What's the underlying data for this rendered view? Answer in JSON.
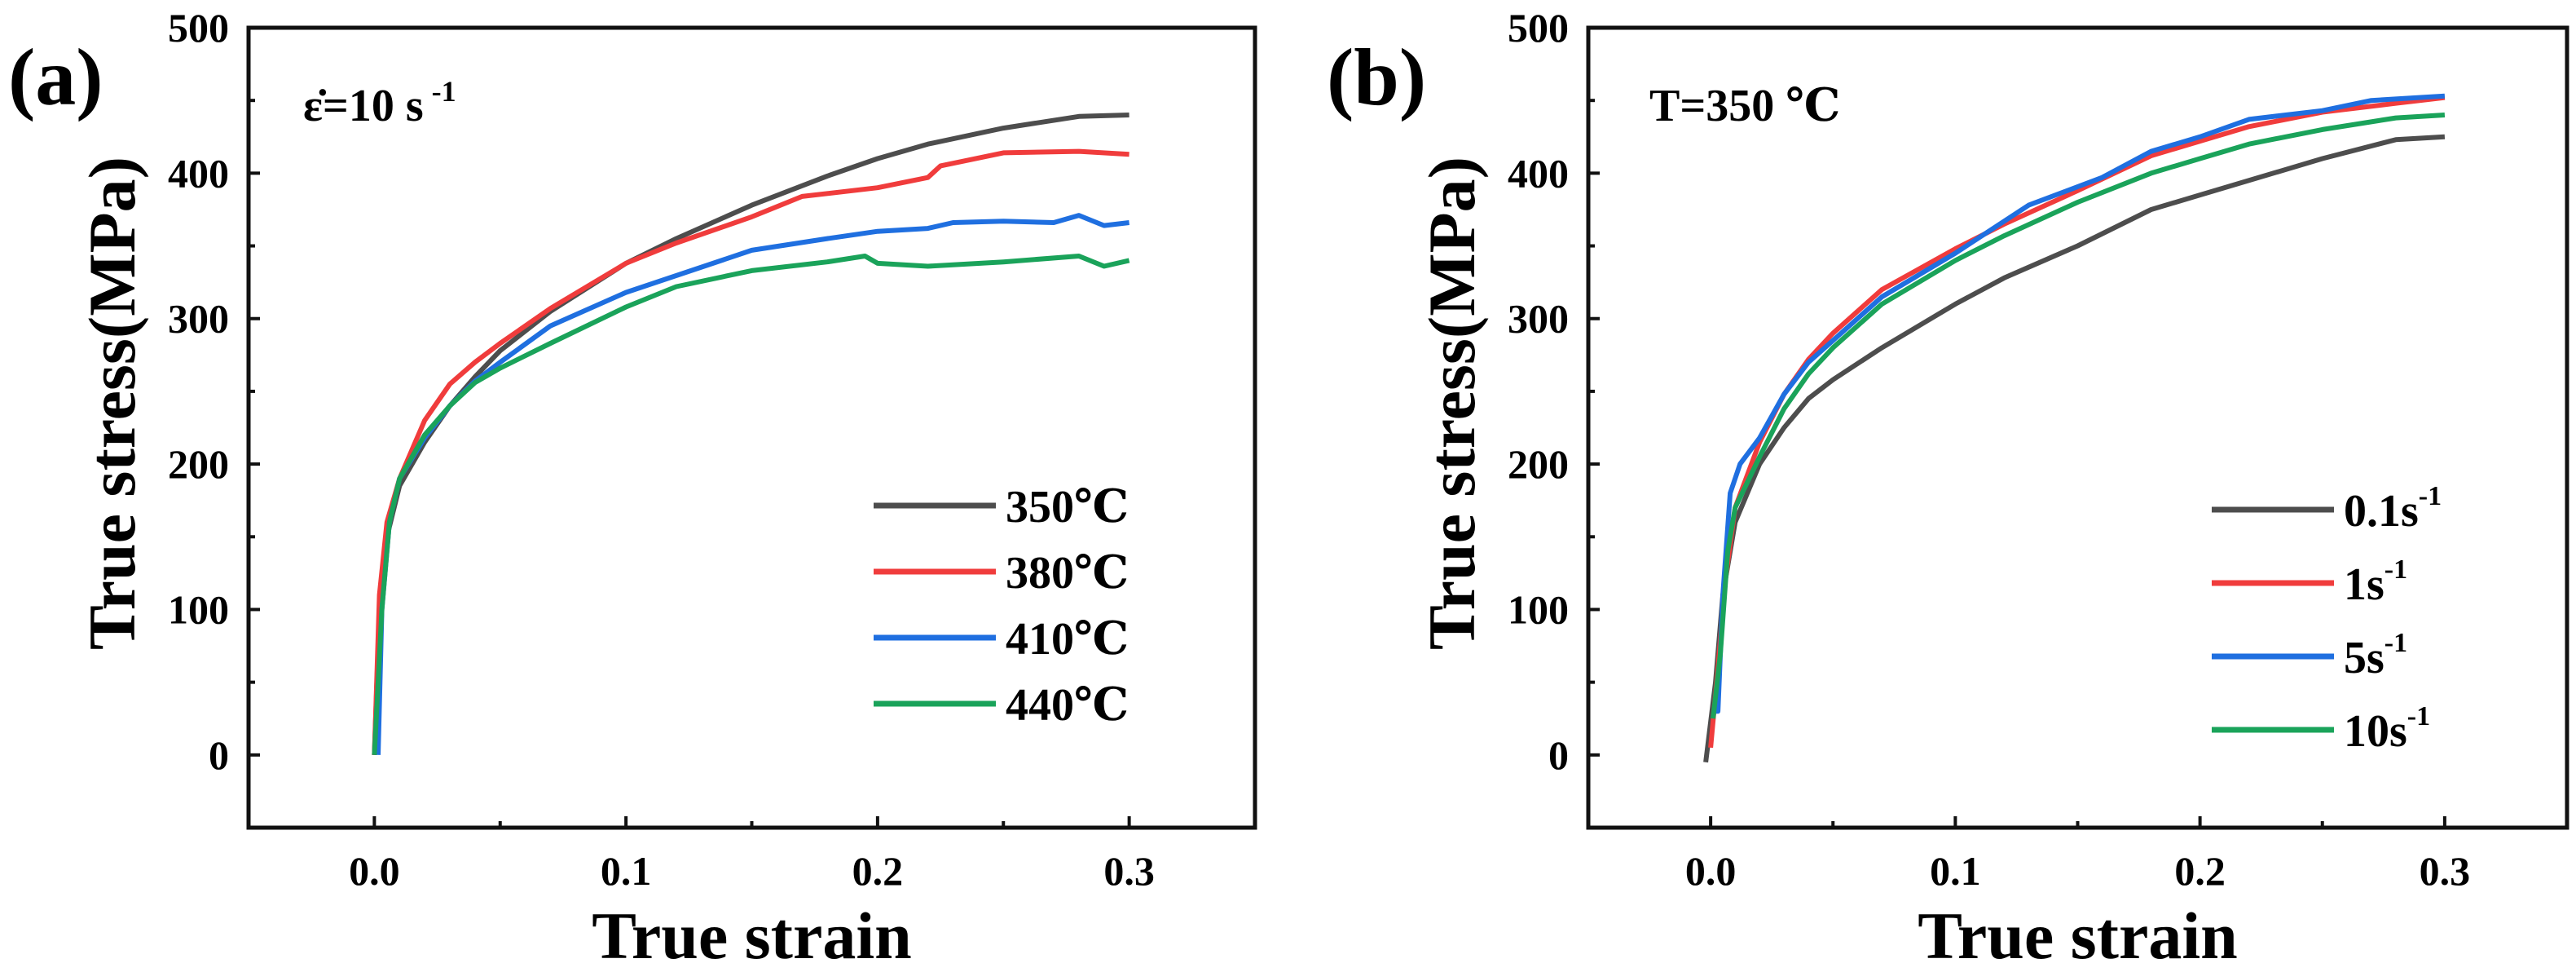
{
  "chart_data": [
    {
      "type": "line",
      "panel_label": "(a)",
      "annotation": "ε̇=10 s",
      "annotation_sup": "-1",
      "xlabel": "True strain",
      "ylabel": "True stress(MPa)",
      "xlim": [
        -0.05,
        0.35
      ],
      "ylim": [
        -50,
        500
      ],
      "xticks": [
        "0.0",
        "0.1",
        "0.2",
        "0.3"
      ],
      "xtick_values": [
        0,
        0.1,
        0.2,
        0.3
      ],
      "yticks": [
        "0",
        "100",
        "200",
        "300",
        "400",
        "500"
      ],
      "ytick_values": [
        0,
        100,
        200,
        300,
        400,
        500
      ],
      "grid": false,
      "legend_position": "lower-right",
      "series": [
        {
          "name": "350℃",
          "sup": "",
          "color": "#4d4d4d",
          "x": [
            0,
            0.002,
            0.005,
            0.01,
            0.02,
            0.03,
            0.04,
            0.05,
            0.07,
            0.1,
            0.12,
            0.15,
            0.18,
            0.2,
            0.22,
            0.25,
            0.28,
            0.3
          ],
          "y": [
            0,
            100,
            150,
            185,
            215,
            240,
            260,
            278,
            305,
            338,
            355,
            378,
            398,
            410,
            420,
            431,
            439,
            440
          ]
        },
        {
          "name": "380℃",
          "sup": "",
          "color": "#f03c3c",
          "x": [
            0,
            0.002,
            0.005,
            0.01,
            0.02,
            0.03,
            0.04,
            0.05,
            0.07,
            0.1,
            0.12,
            0.15,
            0.17,
            0.2,
            0.22,
            0.225,
            0.25,
            0.28,
            0.3
          ],
          "y": [
            0,
            110,
            160,
            190,
            230,
            255,
            270,
            283,
            307,
            338,
            352,
            370,
            384,
            390,
            397,
            405,
            414,
            415,
            413
          ]
        },
        {
          "name": "410℃",
          "sup": "",
          "color": "#1f6fe0",
          "x": [
            0.0015,
            0.003,
            0.006,
            0.01,
            0.02,
            0.03,
            0.04,
            0.05,
            0.07,
            0.1,
            0.15,
            0.18,
            0.2,
            0.22,
            0.23,
            0.25,
            0.27,
            0.28,
            0.29,
            0.3
          ],
          "y": [
            0,
            100,
            160,
            190,
            218,
            240,
            257,
            270,
            295,
            318,
            347,
            355,
            360,
            362,
            366,
            367,
            366,
            371,
            364,
            366
          ]
        },
        {
          "name": "440℃",
          "sup": "",
          "color": "#1aa35a",
          "x": [
            0,
            0.003,
            0.006,
            0.01,
            0.02,
            0.03,
            0.04,
            0.05,
            0.07,
            0.1,
            0.12,
            0.15,
            0.18,
            0.195,
            0.2,
            0.22,
            0.25,
            0.28,
            0.29,
            0.3
          ],
          "y": [
            0,
            100,
            160,
            190,
            220,
            240,
            256,
            266,
            283,
            308,
            322,
            333,
            339,
            343,
            338,
            336,
            339,
            343,
            336,
            340
          ]
        }
      ]
    },
    {
      "type": "line",
      "panel_label": "(b)",
      "annotation": "T=350 ℃",
      "annotation_sup": "",
      "xlabel": "True strain",
      "ylabel": "True stress(MPa)",
      "xlim": [
        -0.05,
        0.35
      ],
      "ylim": [
        -50,
        500
      ],
      "xticks": [
        "0.0",
        "0.1",
        "0.2",
        "0.3"
      ],
      "xtick_values": [
        0,
        0.1,
        0.2,
        0.3
      ],
      "yticks": [
        "0",
        "100",
        "200",
        "300",
        "400",
        "500"
      ],
      "ytick_values": [
        0,
        100,
        200,
        300,
        400,
        500
      ],
      "grid": false,
      "legend_position": "lower-right",
      "series": [
        {
          "name": "0.1s",
          "sup": "-1",
          "color": "#4d4d4d",
          "x": [
            -0.002,
            0.002,
            0.005,
            0.01,
            0.02,
            0.03,
            0.04,
            0.05,
            0.07,
            0.1,
            0.12,
            0.15,
            0.18,
            0.2,
            0.22,
            0.25,
            0.28,
            0.3
          ],
          "y": [
            -5,
            50,
            110,
            160,
            200,
            225,
            245,
            258,
            280,
            310,
            328,
            350,
            375,
            385,
            395,
            410,
            423,
            425
          ]
        },
        {
          "name": "1s",
          "sup": "-1",
          "color": "#f03c3c",
          "x": [
            0,
            0.003,
            0.006,
            0.01,
            0.02,
            0.03,
            0.04,
            0.05,
            0.07,
            0.1,
            0.12,
            0.15,
            0.18,
            0.2,
            0.22,
            0.25,
            0.28,
            0.3
          ],
          "y": [
            5,
            60,
            120,
            170,
            215,
            248,
            272,
            290,
            320,
            348,
            365,
            388,
            412,
            422,
            432,
            442,
            448,
            452
          ]
        },
        {
          "name": "5s",
          "sup": "-1",
          "color": "#1f6fe0",
          "x": [
            0.001,
            0.003,
            0.005,
            0.008,
            0.012,
            0.02,
            0.03,
            0.04,
            0.05,
            0.07,
            0.1,
            0.13,
            0.16,
            0.18,
            0.2,
            0.22,
            0.25,
            0.27,
            0.3
          ],
          "y": [
            30,
            30,
            110,
            180,
            200,
            218,
            248,
            270,
            285,
            315,
            345,
            378,
            397,
            415,
            425,
            437,
            443,
            450,
            453
          ]
        },
        {
          "name": "10s",
          "sup": "-1",
          "color": "#1aa35a",
          "x": [
            0.001,
            0.004,
            0.007,
            0.01,
            0.02,
            0.03,
            0.04,
            0.05,
            0.07,
            0.1,
            0.12,
            0.15,
            0.18,
            0.2,
            0.22,
            0.25,
            0.28,
            0.3
          ],
          "y": [
            25,
            70,
            140,
            170,
            205,
            238,
            262,
            280,
            310,
            340,
            357,
            380,
            400,
            410,
            420,
            430,
            438,
            440
          ]
        }
      ]
    }
  ]
}
